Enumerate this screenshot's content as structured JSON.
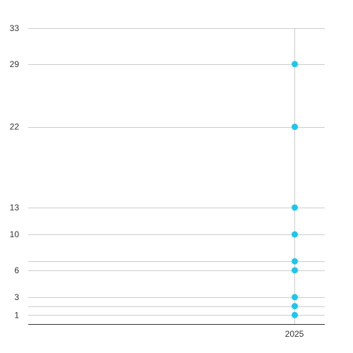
{
  "chart_data": {
    "type": "scatter",
    "x_categories": [
      "2025"
    ],
    "y_ticks": [
      1,
      3,
      6,
      10,
      13,
      22,
      29,
      33
    ],
    "gridlines_y": [
      1,
      2,
      3,
      6,
      7,
      10,
      13,
      22,
      29,
      33
    ],
    "ylim": [
      0,
      33
    ],
    "grid": true,
    "legend": "none",
    "series": [
      {
        "color": "#1ac8ee",
        "points": [
          {
            "x": "2025",
            "y": 29
          },
          {
            "x": "2025",
            "y": 22
          },
          {
            "x": "2025",
            "y": 13
          },
          {
            "x": "2025",
            "y": 10
          },
          {
            "x": "2025",
            "y": 7
          },
          {
            "x": "2025",
            "y": 6
          },
          {
            "x": "2025",
            "y": 3
          },
          {
            "x": "2025",
            "y": 2
          },
          {
            "x": "2025",
            "y": 1
          }
        ]
      }
    ]
  }
}
